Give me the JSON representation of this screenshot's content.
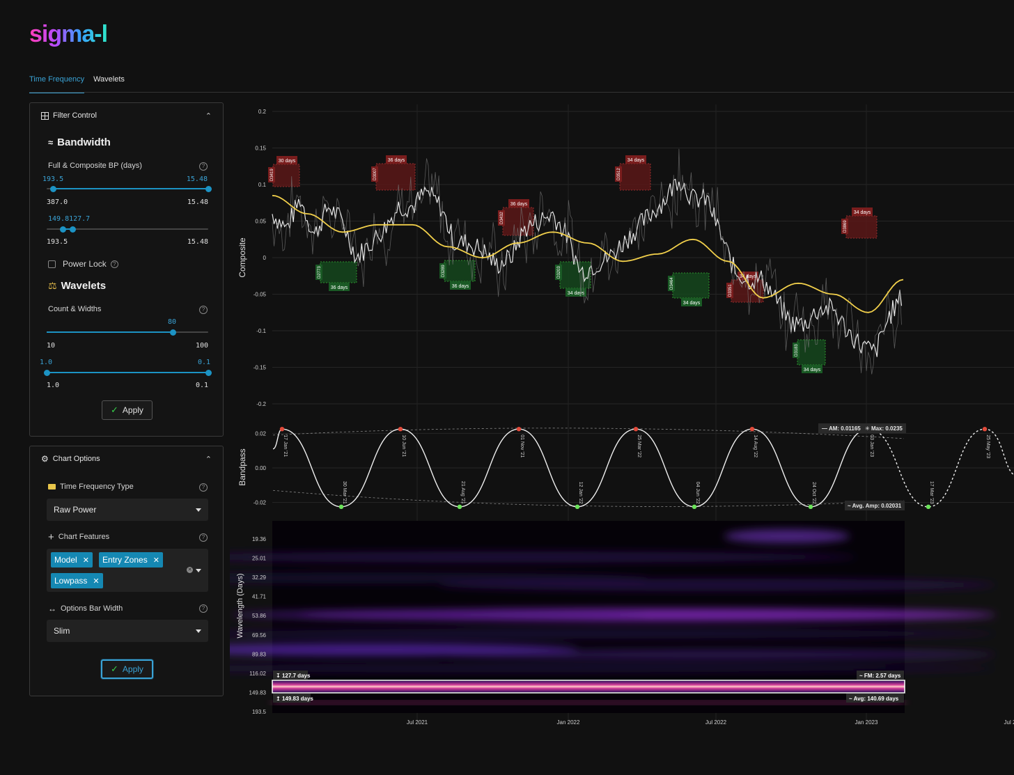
{
  "app": {
    "logo": "sigma-l"
  },
  "tabs": [
    {
      "label": "Time Frequency",
      "active": true
    },
    {
      "label": "Wavelets",
      "active": false
    }
  ],
  "filter_control": {
    "title": "Filter Control",
    "bandwidth_title": "Bandwidth",
    "bp_label": "Full & Composite BP (days)",
    "slider1": {
      "low": "193.5",
      "high": "15.48",
      "min": "387.0",
      "max": "15.48",
      "low_frac": 0.04,
      "high_frac": 1.0
    },
    "slider2": {
      "low": "149.83",
      "high": "127.7",
      "overlap": "149.8127.7",
      "min": "193.5",
      "max": "15.48",
      "low_frac": 0.1,
      "high_frac": 0.16
    },
    "power_lock": "Power Lock",
    "wavelets_title": "Wavelets",
    "count_label": "Count & Widths",
    "slider3": {
      "value": "80",
      "min": "10",
      "max": "100",
      "frac": 0.78
    },
    "slider4": {
      "low": "1.0",
      "high": "0.1",
      "min": "1.0",
      "max": "0.1",
      "low_frac": 0.0,
      "high_frac": 1.0
    },
    "apply": "Apply"
  },
  "chart_options": {
    "title": "Chart Options",
    "tf_type_label": "Time Frequency Type",
    "tf_type_value": "Raw Power",
    "features_label": "Chart Features",
    "features": [
      "Model",
      "Entry Zones",
      "Lowpass"
    ],
    "bar_width_label": "Options Bar Width",
    "bar_width_value": "Slim",
    "apply": "Apply"
  },
  "colors": {
    "accent": "#1c93c4",
    "model": "#f2d04b",
    "red_zone": "#7a1d1d",
    "green_zone": "#1a5a25"
  },
  "chart_data": [
    {
      "type": "line",
      "ylabel": "Composite",
      "yticks": [
        "0.2",
        "0.15",
        "0.1",
        "0.05",
        "0",
        "-0.05",
        "-0.1",
        "-0.15",
        "-0.2"
      ],
      "ylim": [
        -0.2,
        0.2
      ],
      "series": [
        {
          "x": [
            0,
            20,
            40,
            60,
            80,
            100,
            120,
            140,
            160,
            180,
            200,
            220,
            240,
            260,
            280,
            300,
            320,
            340,
            360,
            380,
            400,
            420,
            440,
            460,
            480,
            500,
            520,
            540,
            560,
            580,
            600,
            620,
            640,
            660,
            680,
            700,
            720,
            740,
            760,
            780,
            800,
            820,
            840,
            860,
            880,
            900
          ],
          "values": [
            0.06,
            0.04,
            0.08,
            0.03,
            0.07,
            0.05,
            0.0,
            0.02,
            0.04,
            0.07,
            0.07,
            0.09,
            0.07,
            0.02,
            0.02,
            0.01,
            -0.01,
            0.0,
            0.04,
            0.05,
            0.06,
            0.03,
            -0.02,
            -0.01,
            0.0,
            0.02,
            0.04,
            0.06,
            0.08,
            0.11,
            0.08,
            0.08,
            0.03,
            -0.02,
            -0.03,
            -0.03,
            -0.06,
            -0.09,
            -0.09,
            -0.07,
            -0.07,
            -0.1,
            -0.12,
            -0.13,
            -0.08,
            -0.05
          ],
          "kind": "composite"
        },
        {
          "x": [
            0,
            50,
            100,
            150,
            200,
            250,
            300,
            350,
            400,
            450,
            500,
            550,
            600,
            650,
            700,
            750,
            800,
            850,
            900
          ],
          "values": [
            0.085,
            0.06,
            0.035,
            0.045,
            0.045,
            0.015,
            0.0,
            0.02,
            0.035,
            0.02,
            -0.005,
            0.005,
            0.025,
            -0.005,
            -0.055,
            -0.035,
            -0.05,
            -0.075,
            -0.03
          ],
          "kind": "model"
        }
      ],
      "entry_zones": [
        {
          "label": "30 days",
          "code": "D3419",
          "color": "red"
        },
        {
          "label": "36 days",
          "code": "D2773",
          "color": "green"
        },
        {
          "label": "36 days",
          "code": "D3007",
          "color": "red"
        },
        {
          "label": "36 days",
          "code": "D3289",
          "color": "green"
        },
        {
          "label": "36 days",
          "code": "D3432",
          "color": "red"
        },
        {
          "label": "34 days",
          "code": "D3203",
          "color": "green"
        },
        {
          "label": "34 days",
          "code": "D3512",
          "color": "red"
        },
        {
          "label": "34 days",
          "code": "D3464",
          "color": "green"
        },
        {
          "label": "34 days",
          "code": "D3351",
          "color": "red"
        },
        {
          "label": "34 days",
          "code": "D3183",
          "color": "green"
        },
        {
          "label": "34 days",
          "code": "D3869",
          "color": "red"
        }
      ]
    },
    {
      "type": "line",
      "ylabel": "Bandpass",
      "yticks": [
        "0.02",
        "0.00",
        "-0.02"
      ],
      "ylim": [
        -0.025,
        0.025
      ],
      "peaks": [
        "17 Jan '21",
        "10 Jun '21",
        "01 Nov '21",
        "25 Mar '22",
        "14 Aug '22",
        "03 Jan '23",
        "25 May '23"
      ],
      "troughs": [
        "30 Mar '21",
        "21 Aug '21",
        "12 Jan '22",
        "04 Jun '22",
        "24 Oct '22",
        "17 Mar '23"
      ],
      "am_label": "AM: 0.01165",
      "max_label": "Max: 0.0235",
      "avg_amp_label": "Avg. Amp: 0.02031"
    },
    {
      "type": "heatmap",
      "ylabel": "Wavelength (Days)",
      "yticks": [
        "19.36",
        "25.01",
        "32.29",
        "41.71",
        "53.86",
        "69.56",
        "89.83",
        "116.02",
        "149.83",
        "193.5"
      ],
      "xticks": [
        "Jul 2021",
        "Jan 2022",
        "Jul 2022",
        "Jan 2023",
        "Jul 2"
      ],
      "band_top": "127.7 days",
      "band_bottom": "149.83 days",
      "fm_label": "FM: 2.57 days",
      "avg_label": "Avg: 140.69 days"
    }
  ]
}
